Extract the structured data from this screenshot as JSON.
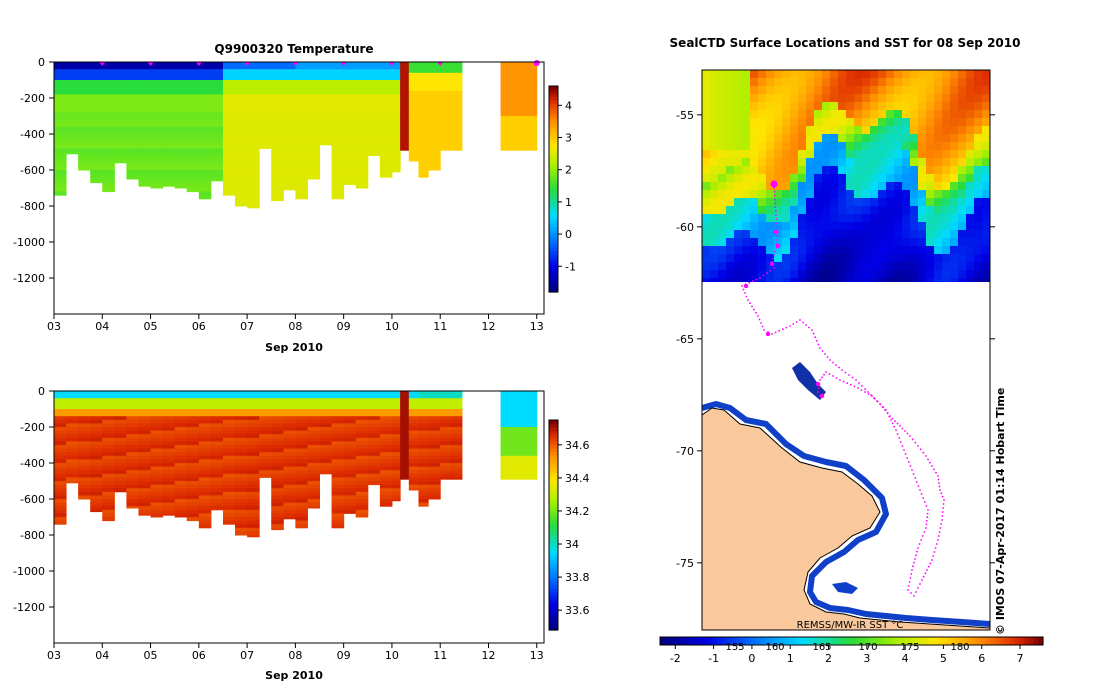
{
  "colors": {
    "land": "#f9c99d",
    "track": "#ff00ff",
    "coast_blue": "#1040c8",
    "frame": "#000000"
  },
  "chart_data": [
    {
      "type": "heatmap",
      "title": "Q9900320  Temperature",
      "xlabel": "Sep 2010",
      "x_ticks": [
        "03",
        "04",
        "05",
        "06",
        "07",
        "08",
        "09",
        "10",
        "11",
        "12",
        "13"
      ],
      "y_ticks": [
        "0",
        "-200",
        "-400",
        "-600",
        "-800",
        "-1000",
        "-1200"
      ],
      "ylim": [
        -1400,
        0
      ],
      "colorbar": {
        "ticks": [
          "-1",
          "0",
          "1",
          "2",
          "3",
          "4"
        ],
        "range": [
          -1.8,
          4.6
        ]
      },
      "profile_days": [
        3.0,
        3.25,
        3.5,
        3.75,
        4.0,
        4.25,
        4.5,
        4.75,
        5.0,
        5.25,
        5.5,
        5.75,
        6.0,
        6.25,
        6.5,
        6.75,
        7.0,
        7.25,
        7.5,
        7.75,
        8.0,
        8.25,
        8.5,
        8.75,
        9.0,
        9.25,
        9.5,
        9.75,
        10.0,
        10.17,
        10.35,
        10.55,
        10.75,
        11.0,
        11.2,
        12.25,
        12.5,
        12.75
      ],
      "profile_max_depth": [
        740,
        510,
        600,
        670,
        720,
        560,
        650,
        690,
        700,
        690,
        700,
        720,
        760,
        660,
        740,
        800,
        810,
        480,
        770,
        710,
        760,
        650,
        460,
        760,
        680,
        700,
        520,
        640,
        610,
        490,
        550,
        640,
        600,
        490,
        490,
        490,
        490,
        490
      ]
    },
    {
      "type": "heatmap",
      "title": "",
      "xlabel": "Sep 2010",
      "x_ticks": [
        "03",
        "04",
        "05",
        "06",
        "07",
        "08",
        "09",
        "10",
        "11",
        "12",
        "13"
      ],
      "y_ticks": [
        "0",
        "-200",
        "-400",
        "-600",
        "-800",
        "-1000",
        "-1200"
      ],
      "ylim": [
        -1400,
        0
      ],
      "colorbar": {
        "ticks": [
          "33.6",
          "33.8",
          "34",
          "34.2",
          "34.4",
          "34.6"
        ],
        "range": [
          33.48,
          34.75
        ]
      }
    },
    {
      "type": "heatmap",
      "title": "SealCTD Surface Locations and SST for 08 Sep 2010",
      "y_ticks": [
        "-55",
        "-60",
        "-65",
        "-70",
        "-75"
      ],
      "ylim": [
        -78,
        -53
      ],
      "colorbar_label": "REMSS/MW-IR SST °C",
      "colorbar": {
        "ticks": [
          "-2",
          "-1",
          "0",
          "1",
          "2",
          "3",
          "4",
          "5",
          "6",
          "7"
        ],
        "range": [
          -2.4,
          7.6
        ]
      },
      "lon_ticks": [
        "155",
        "160",
        "165",
        "170",
        "175",
        "180"
      ],
      "credit": "© IMOS 07-Apr-2017 01:14 Hobart Time"
    }
  ]
}
